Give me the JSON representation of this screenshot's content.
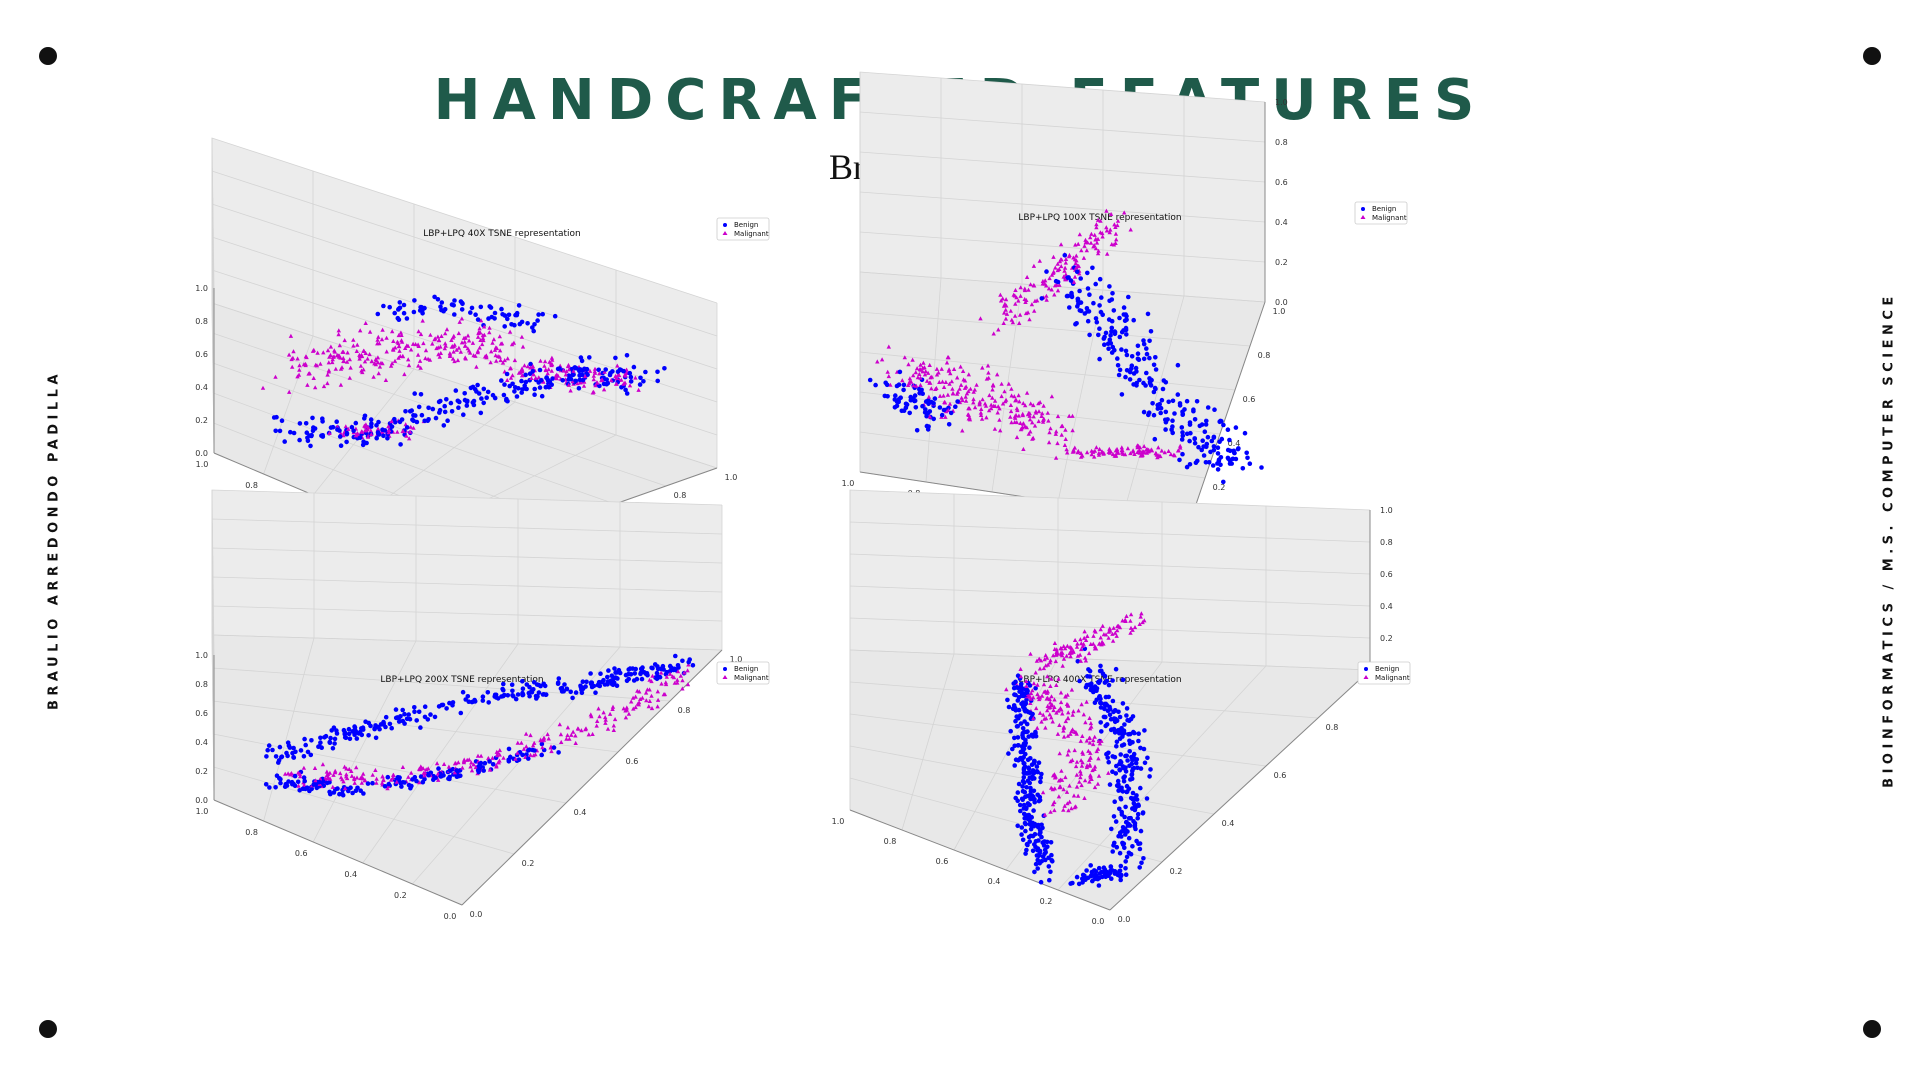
{
  "slide": {
    "title": "HANDCRAFTED FEATURES",
    "subtitle": "BreakHis Dataset.",
    "author": "BRAULIO ARREDONDO PADILLA",
    "program": "BIOINFORMATICS / M.S. COMPUTER SCIENCE"
  },
  "colors": {
    "title": "#1f5a4a",
    "benign": "#0000ff",
    "malignant": "#cc00cc"
  },
  "chart_data": [
    {
      "type": "scatter",
      "title": "LBP+LPQ 40X TSNE representation",
      "legend": [
        "Benign",
        "Malignant"
      ],
      "ticks": [
        "0.0",
        "0.2",
        "0.4",
        "0.6",
        "0.8",
        "1.0"
      ],
      "xlim": [
        0,
        1
      ],
      "ylim": [
        0,
        1
      ],
      "zlim": [
        0,
        1
      ]
    },
    {
      "type": "scatter",
      "title": "LBP+LPQ 100X TSNE representation",
      "legend": [
        "Benign",
        "Malignant"
      ],
      "ticks": [
        "0.0",
        "0.2",
        "0.4",
        "0.6",
        "0.8",
        "1.0"
      ],
      "xlim": [
        0,
        1
      ],
      "ylim": [
        0,
        1
      ],
      "zlim": [
        0,
        1
      ]
    },
    {
      "type": "scatter",
      "title": "LBP+LPQ 200X TSNE representation",
      "legend": [
        "Benign",
        "Malignant"
      ],
      "ticks": [
        "0.0",
        "0.2",
        "0.4",
        "0.6",
        "0.8",
        "1.0"
      ],
      "xlim": [
        0,
        1
      ],
      "ylim": [
        0,
        1
      ],
      "zlim": [
        0,
        1
      ]
    },
    {
      "type": "scatter",
      "title": "LBP+LPQ 400X TSNE representation",
      "legend": [
        "Benign",
        "Malignant"
      ],
      "ticks": [
        "0.0",
        "0.2",
        "0.4",
        "0.6",
        "0.8",
        "1.0"
      ],
      "xlim": [
        0,
        1
      ],
      "ylim": [
        0,
        1
      ],
      "zlim": [
        0,
        1
      ]
    }
  ]
}
